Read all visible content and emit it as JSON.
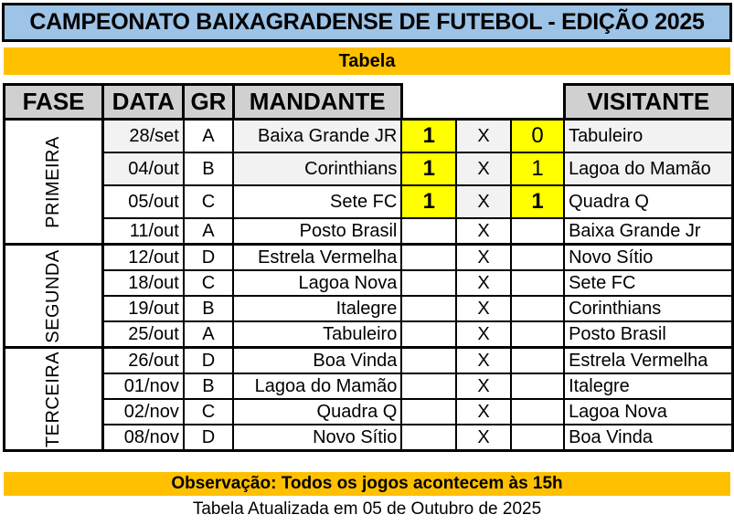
{
  "title": "CAMPEONATO BAIXAGRADENSE DE FUTEBOL - EDIÇÃO 2025",
  "subtitle": "Tabela",
  "headers": {
    "fase": "FASE",
    "data": "DATA",
    "gr": "GR",
    "mandante": "MANDANTE",
    "visitante": "VISITANTE"
  },
  "colors": {
    "title_bg": "#9DC3E6",
    "banner_bg": "#FFC000",
    "score_bg": "#FFFF00",
    "header_bg": "#D0D0D0"
  },
  "phases": [
    {
      "name": "PRIMEIRA",
      "matches": [
        {
          "data": "28/set",
          "gr": "A",
          "mandante": "Baixa Grande JR",
          "gols_mandante": "1",
          "x": "X",
          "gols_visitante": "0",
          "visitante": "Tabuleiro",
          "bold_home": true,
          "bold_away": false
        },
        {
          "data": "04/out",
          "gr": "B",
          "mandante": "Corinthians",
          "gols_mandante": "1",
          "x": "X",
          "gols_visitante": "1",
          "visitante": "Lagoa do Mamão",
          "bold_home": true,
          "bold_away": false
        },
        {
          "data": "05/out",
          "gr": "C",
          "mandante": "Sete FC",
          "gols_mandante": "1",
          "x": "X",
          "gols_visitante": "1",
          "visitante": "Quadra Q",
          "bold_home": true,
          "bold_away": true
        },
        {
          "data": "11/out",
          "gr": "A",
          "mandante": "Posto Brasil",
          "gols_mandante": "",
          "x": "X",
          "gols_visitante": "",
          "visitante": "Baixa Grande Jr"
        }
      ]
    },
    {
      "name": "SEGUNDA",
      "matches": [
        {
          "data": "12/out",
          "gr": "D",
          "mandante": "Estrela Vermelha",
          "gols_mandante": "",
          "x": "X",
          "gols_visitante": "",
          "visitante": "Novo Sítio"
        },
        {
          "data": "18/out",
          "gr": "C",
          "mandante": "Lagoa Nova",
          "gols_mandante": "",
          "x": "X",
          "gols_visitante": "",
          "visitante": "Sete FC"
        },
        {
          "data": "19/out",
          "gr": "B",
          "mandante": "Italegre",
          "gols_mandante": "",
          "x": "X",
          "gols_visitante": "",
          "visitante": "Corinthians"
        },
        {
          "data": "25/out",
          "gr": "A",
          "mandante": "Tabuleiro",
          "gols_mandante": "",
          "x": "X",
          "gols_visitante": "",
          "visitante": "Posto Brasil"
        }
      ]
    },
    {
      "name": "TERCEIRA",
      "matches": [
        {
          "data": "26/out",
          "gr": "D",
          "mandante": "Boa Vinda",
          "gols_mandante": "",
          "x": "X",
          "gols_visitante": "",
          "visitante": "Estrela Vermelha"
        },
        {
          "data": "01/nov",
          "gr": "B",
          "mandante": "Lagoa do Mamão",
          "gols_mandante": "",
          "x": "X",
          "gols_visitante": "",
          "visitante": "Italegre"
        },
        {
          "data": "02/nov",
          "gr": "C",
          "mandante": "Quadra Q",
          "gols_mandante": "",
          "x": "X",
          "gols_visitante": "",
          "visitante": "Lagoa Nova"
        },
        {
          "data": "08/nov",
          "gr": "D",
          "mandante": "Novo Sítio",
          "gols_mandante": "",
          "x": "X",
          "gols_visitante": "",
          "visitante": "Boa Vinda"
        }
      ]
    }
  ],
  "observacao": "Observação: Todos os jogos acontecem às 15h",
  "atualizacao": "Tabela Atualizada em 05 de Outubro de 2025"
}
